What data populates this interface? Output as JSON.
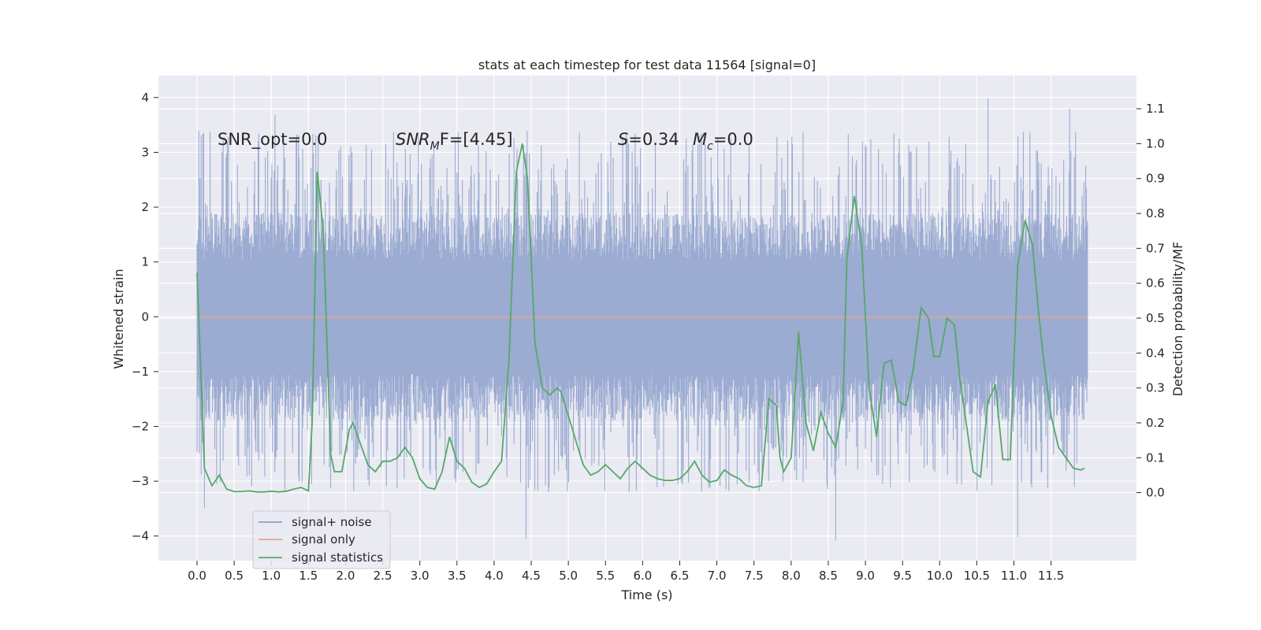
{
  "chart_data": {
    "type": "line",
    "title": "stats at each timestep for test data 11564 [signal=0]",
    "xlabel": "Time (s)",
    "ylabel_left": "Whitened strain",
    "ylabel_right": "Detection probability/MF",
    "xlim": [
      -0.52,
      12.65
    ],
    "ylim_left": [
      -4.45,
      4.4
    ],
    "ylim_right": [
      -0.195,
      1.195
    ],
    "xticks": [
      "0.0",
      "0.5",
      "1.0",
      "1.5",
      "2.0",
      "2.5",
      "3.0",
      "3.5",
      "4.0",
      "4.5",
      "5.0",
      "5.5",
      "6.0",
      "6.5",
      "7.0",
      "7.5",
      "8.0",
      "8.5",
      "9.0",
      "9.5",
      "10.0",
      "10.5",
      "11.0",
      "11.5"
    ],
    "yticks_left": [
      "4",
      "3",
      "2",
      "1",
      "0",
      "−1",
      "−2",
      "−3",
      "−4"
    ],
    "yticks_right": [
      "1.1",
      "1.0",
      "0.9",
      "0.8",
      "0.7",
      "0.6",
      "0.5",
      "0.4",
      "0.3",
      "0.2",
      "0.1",
      "0.0"
    ],
    "annotations": {
      "snr_opt": "SNR_opt=0.0",
      "snr_mf_main": "SNR",
      "snr_mf_sub": "M",
      "snr_mf_rest": "F=[4.45]",
      "s_var": "S",
      "s_val": "=0.34",
      "mc_var": "M",
      "mc_sub": "c",
      "mc_val": "=0.0"
    },
    "legend": [
      "signal+ noise",
      "signal only",
      "signal statistics"
    ],
    "colors": {
      "noise": "#8da0cb",
      "signal": "#e5a58a",
      "stats": "#55a868",
      "background": "#eaeaf2",
      "grid": "#ffffff"
    },
    "series": [
      {
        "name": "signal+ noise",
        "axis": "left",
        "description": "dense whitened strain noise, roughly ±1.9 typical, peaks near ±4",
        "t_range": [
          0.0,
          11.99
        ],
        "typical_amplitude": 1.9,
        "max_peaks": [
          {
            "t": 4.43,
            "y": -4.05
          },
          {
            "t": 8.6,
            "y": -4.08
          },
          {
            "t": 11.05,
            "y": -4.02
          },
          {
            "t": 10.65,
            "y": 3.99
          },
          {
            "t": 11.75,
            "y": 3.8
          },
          {
            "t": 1.05,
            "y": 3.68
          },
          {
            "t": 0.1,
            "y": -3.48
          }
        ]
      },
      {
        "name": "signal only",
        "axis": "left",
        "t": [
          0.0,
          11.99
        ],
        "values": [
          0.0,
          0.0
        ]
      },
      {
        "name": "signal statistics",
        "axis": "right",
        "t": [
          0.0,
          0.1,
          0.2,
          0.3,
          0.4,
          0.5,
          0.6,
          0.7,
          0.8,
          0.9,
          1.0,
          1.1,
          1.2,
          1.3,
          1.4,
          1.5,
          1.55,
          1.62,
          1.7,
          1.8,
          1.85,
          1.95,
          2.05,
          2.1,
          2.2,
          2.3,
          2.4,
          2.5,
          2.6,
          2.7,
          2.8,
          2.9,
          3.0,
          3.1,
          3.2,
          3.3,
          3.4,
          3.5,
          3.6,
          3.7,
          3.8,
          3.9,
          4.0,
          4.1,
          4.2,
          4.3,
          4.38,
          4.45,
          4.55,
          4.65,
          4.75,
          4.8,
          4.85,
          4.9,
          5.0,
          5.1,
          5.2,
          5.3,
          5.4,
          5.5,
          5.6,
          5.7,
          5.8,
          5.9,
          6.0,
          6.1,
          6.2,
          6.3,
          6.4,
          6.5,
          6.6,
          6.7,
          6.8,
          6.9,
          7.0,
          7.1,
          7.2,
          7.3,
          7.4,
          7.5,
          7.6,
          7.7,
          7.8,
          7.85,
          7.9,
          8.0,
          8.1,
          8.2,
          8.3,
          8.4,
          8.5,
          8.6,
          8.7,
          8.75,
          8.85,
          8.95,
          9.05,
          9.15,
          9.25,
          9.35,
          9.45,
          9.55,
          9.65,
          9.75,
          9.85,
          9.92,
          10.0,
          10.1,
          10.2,
          10.27,
          10.35,
          10.45,
          10.55,
          10.65,
          10.75,
          10.85,
          10.95,
          11.05,
          11.15,
          11.25,
          11.33,
          11.4,
          11.5,
          11.6,
          11.7,
          11.8,
          11.9,
          11.95
        ],
        "values": [
          0.63,
          0.07,
          0.02,
          0.05,
          0.01,
          0.003,
          0.003,
          0.005,
          0.002,
          0.002,
          0.004,
          0.002,
          0.004,
          0.01,
          0.015,
          0.005,
          0.2,
          0.92,
          0.75,
          0.11,
          0.06,
          0.06,
          0.18,
          0.2,
          0.14,
          0.08,
          0.06,
          0.09,
          0.09,
          0.1,
          0.13,
          0.1,
          0.04,
          0.015,
          0.01,
          0.06,
          0.16,
          0.09,
          0.07,
          0.03,
          0.015,
          0.025,
          0.06,
          0.09,
          0.38,
          0.92,
          1.0,
          0.9,
          0.43,
          0.3,
          0.28,
          0.29,
          0.3,
          0.29,
          0.22,
          0.15,
          0.08,
          0.05,
          0.06,
          0.08,
          0.06,
          0.04,
          0.07,
          0.09,
          0.07,
          0.05,
          0.04,
          0.035,
          0.035,
          0.04,
          0.06,
          0.09,
          0.05,
          0.03,
          0.035,
          0.065,
          0.05,
          0.04,
          0.02,
          0.015,
          0.02,
          0.27,
          0.25,
          0.1,
          0.06,
          0.1,
          0.46,
          0.2,
          0.12,
          0.23,
          0.17,
          0.13,
          0.26,
          0.67,
          0.85,
          0.71,
          0.3,
          0.16,
          0.37,
          0.38,
          0.26,
          0.25,
          0.36,
          0.53,
          0.5,
          0.39,
          0.39,
          0.5,
          0.48,
          0.33,
          0.21,
          0.06,
          0.045,
          0.26,
          0.31,
          0.095,
          0.095,
          0.65,
          0.78,
          0.71,
          0.52,
          0.38,
          0.22,
          0.13,
          0.1,
          0.07,
          0.065,
          0.07
        ]
      }
    ]
  }
}
